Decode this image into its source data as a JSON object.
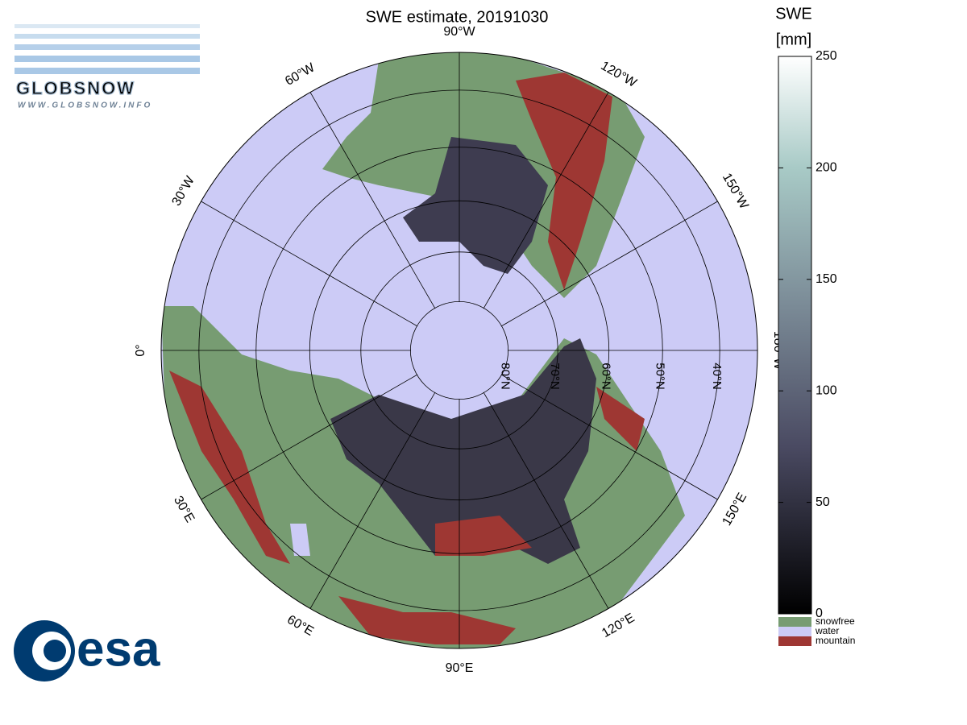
{
  "title": "SWE estimate, 20191030",
  "colorbar": {
    "label": [
      "SWE",
      "[mm]"
    ],
    "lim": [
      0,
      250
    ],
    "ticks": [
      0,
      50,
      100,
      150,
      200,
      250
    ]
  },
  "legend": [
    {
      "name": "snowfree",
      "color": "#779c72"
    },
    {
      "name": "water",
      "color": "#cccbf6"
    },
    {
      "name": "mountain",
      "color": "#9e3733"
    }
  ],
  "graticule": {
    "meridians": [
      {
        "value": -90,
        "label": "90°W"
      },
      {
        "value": -120,
        "label": "120°W"
      },
      {
        "value": -150,
        "label": "150°W"
      },
      {
        "value": 180,
        "label": "180°W"
      },
      {
        "value": 150,
        "label": "150°E"
      },
      {
        "value": 120,
        "label": "120°E"
      },
      {
        "value": 90,
        "label": "90°E"
      },
      {
        "value": 60,
        "label": "60°E"
      },
      {
        "value": 30,
        "label": "30°E"
      },
      {
        "value": 0,
        "label": "0°"
      },
      {
        "value": -30,
        "label": "30°W"
      },
      {
        "value": -60,
        "label": "60°W"
      }
    ],
    "parallels": [
      {
        "value": 80,
        "label": "80°N"
      },
      {
        "value": 70,
        "label": "70°N"
      },
      {
        "value": 60,
        "label": "60°N"
      },
      {
        "value": 50,
        "label": "50°N"
      },
      {
        "value": 40,
        "label": "40°N"
      }
    ]
  },
  "logos": {
    "globsnow": "GLOBSNOW",
    "globsnow_url": "WWW.GLOBSNOW.INFO",
    "esa": "esa"
  }
}
